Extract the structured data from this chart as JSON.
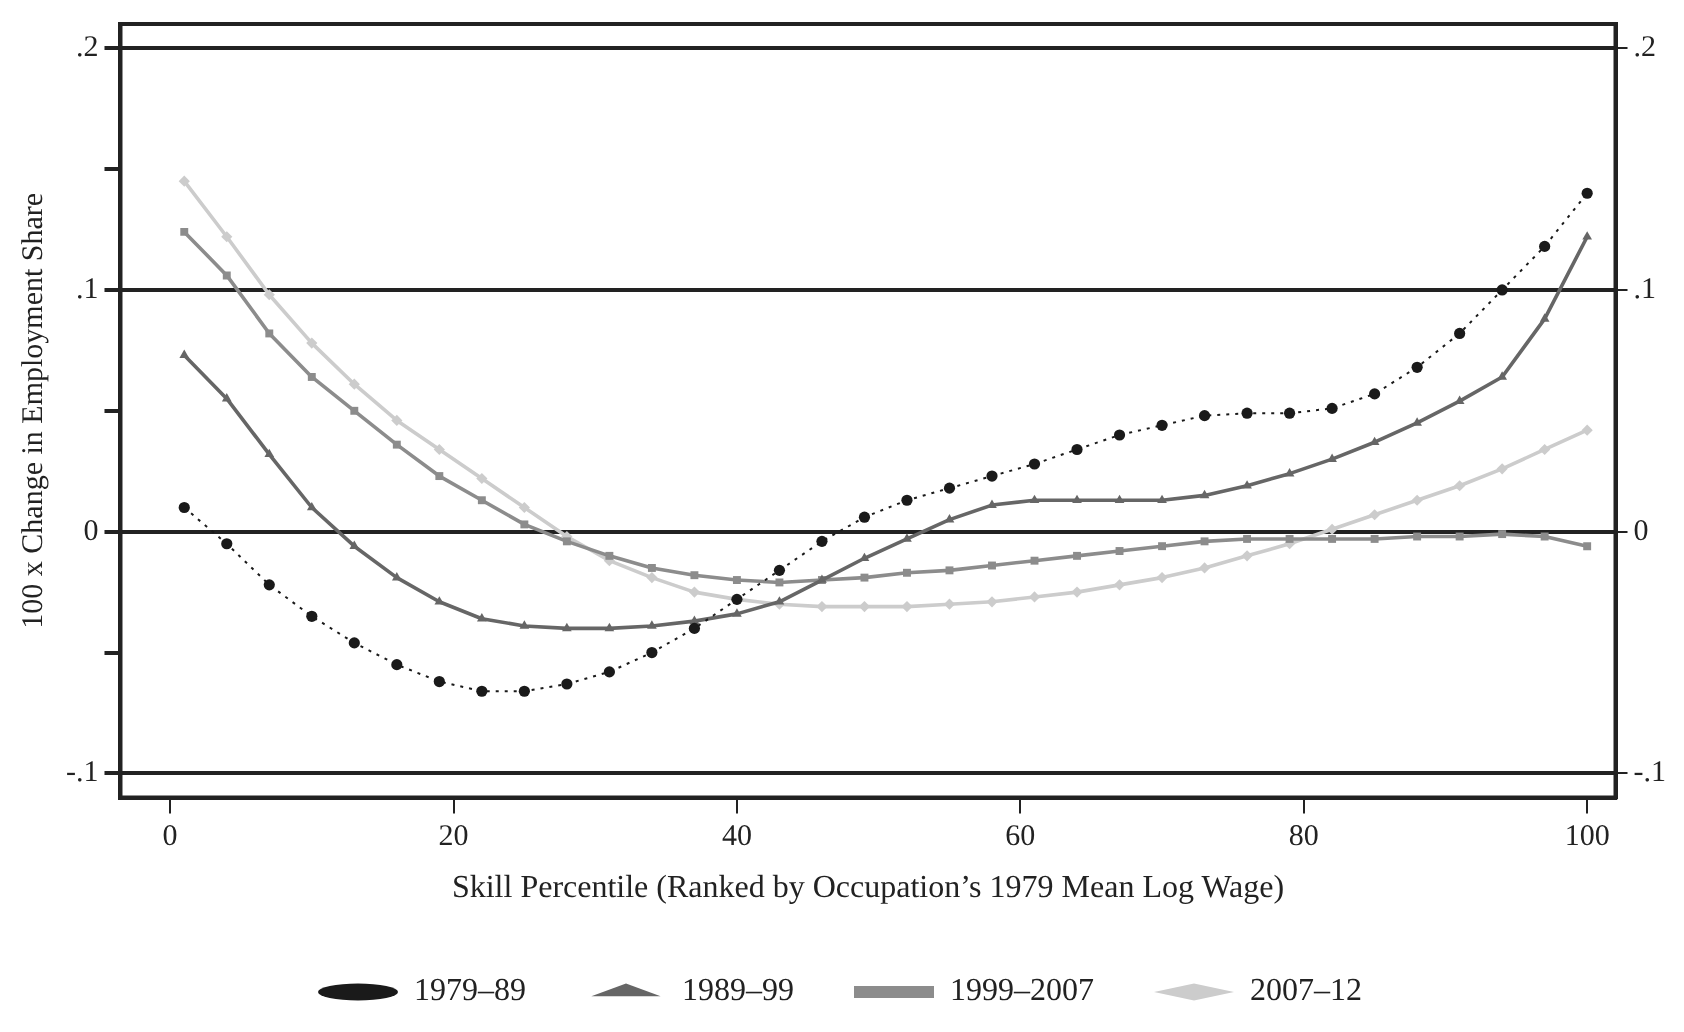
{
  "chart_data": {
    "type": "line",
    "xlabel": "Skill Percentile (Ranked by Occupation’s 1979 Mean Log Wage)",
    "ylabel": "100 x Change in Employment Share",
    "x": [
      1,
      4,
      7,
      10,
      13,
      16,
      19,
      22,
      25,
      28,
      31,
      34,
      37,
      40,
      43,
      46,
      49,
      52,
      55,
      58,
      61,
      64,
      67,
      70,
      73,
      76,
      79,
      82,
      85,
      88,
      91,
      94,
      97,
      100
    ],
    "series": [
      {
        "name": "1979–89",
        "color": "#1a1a1a",
        "marker": "circle",
        "line_style": "dotted",
        "values": [
          0.01,
          -0.005,
          -0.022,
          -0.035,
          -0.046,
          -0.055,
          -0.062,
          -0.066,
          -0.066,
          -0.063,
          -0.058,
          -0.05,
          -0.04,
          -0.028,
          -0.016,
          -0.004,
          0.006,
          0.013,
          0.018,
          0.023,
          0.028,
          0.034,
          0.04,
          0.044,
          0.048,
          0.049,
          0.049,
          0.051,
          0.057,
          0.068,
          0.082,
          0.1,
          0.118,
          0.14
        ]
      },
      {
        "name": "1989–99",
        "color": "#666666",
        "marker": "triangle",
        "line_style": "solid",
        "values": [
          0.073,
          0.055,
          0.032,
          0.01,
          -0.006,
          -0.019,
          -0.029,
          -0.036,
          -0.039,
          -0.04,
          -0.04,
          -0.039,
          -0.037,
          -0.034,
          -0.029,
          -0.02,
          -0.011,
          -0.003,
          0.005,
          0.011,
          0.013,
          0.013,
          0.013,
          0.013,
          0.015,
          0.019,
          0.024,
          0.03,
          0.037,
          0.045,
          0.054,
          0.064,
          0.088,
          0.122
        ]
      },
      {
        "name": "1999–2007",
        "color": "#8c8c8c",
        "marker": "square",
        "line_style": "solid",
        "values": [
          0.124,
          0.106,
          0.082,
          0.064,
          0.05,
          0.036,
          0.023,
          0.013,
          0.003,
          -0.004,
          -0.01,
          -0.015,
          -0.018,
          -0.02,
          -0.021,
          -0.02,
          -0.019,
          -0.017,
          -0.016,
          -0.014,
          -0.012,
          -0.01,
          -0.008,
          -0.006,
          -0.004,
          -0.003,
          -0.003,
          -0.003,
          -0.003,
          -0.002,
          -0.002,
          -0.001,
          -0.002,
          -0.006
        ]
      },
      {
        "name": "2007–12",
        "color": "#cccccc",
        "marker": "diamond",
        "line_style": "solid",
        "values": [
          0.145,
          0.122,
          0.098,
          0.078,
          0.061,
          0.046,
          0.034,
          0.022,
          0.01,
          -0.002,
          -0.012,
          -0.019,
          -0.025,
          -0.028,
          -0.03,
          -0.031,
          -0.031,
          -0.031,
          -0.03,
          -0.029,
          -0.027,
          -0.025,
          -0.022,
          -0.019,
          -0.015,
          -0.01,
          -0.005,
          0.001,
          0.007,
          0.013,
          0.019,
          0.026,
          0.034,
          0.042
        ]
      }
    ],
    "xlim": [
      -3.5,
      102
    ],
    "xticks": [
      0,
      20,
      40,
      60,
      80,
      100
    ],
    "ylim": [
      -0.11,
      0.21
    ],
    "yticks": [
      {
        "value": 0.2,
        "label": ".2"
      },
      {
        "value": 0.15,
        "label": null
      },
      {
        "value": 0.1,
        "label": ".1"
      },
      {
        "value": 0.05,
        "label": null
      },
      {
        "value": 0,
        "label": "0"
      },
      {
        "value": -0.05,
        "label": null
      },
      {
        "value": -0.1,
        "label": "-.1"
      }
    ],
    "y2lim": [
      -0.11,
      0.21
    ],
    "y2ticks": [
      {
        "value": 0.2,
        "label": ".2"
      },
      {
        "value": 0.1,
        "label": ".1"
      },
      {
        "value": 0,
        "label": "0"
      },
      {
        "value": -0.1,
        "label": "-.1"
      }
    ],
    "grid": "y",
    "legend": "bottom"
  }
}
